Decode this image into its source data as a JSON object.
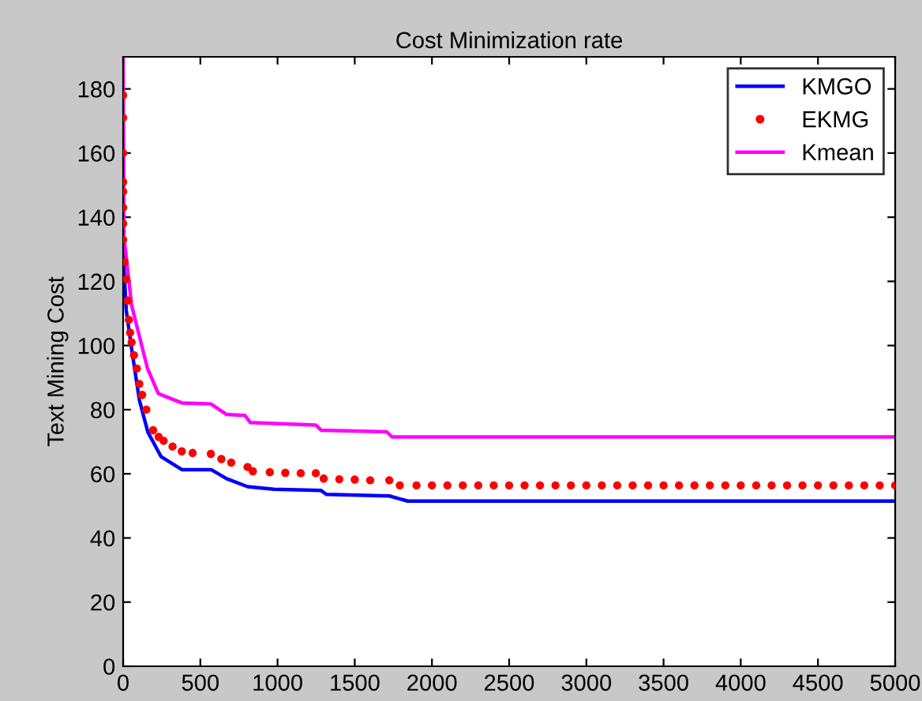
{
  "chart_data": {
    "type": "line",
    "title": "Cost Minimization rate",
    "ylabel": "Text Mining Cost",
    "xlim": [
      0,
      5000
    ],
    "ylim": [
      0,
      190
    ],
    "xticks": [
      0,
      500,
      1000,
      1500,
      2000,
      2500,
      3000,
      3500,
      4000,
      4500,
      5000
    ],
    "yticks": [
      0,
      20,
      40,
      60,
      80,
      100,
      120,
      140,
      160,
      180
    ],
    "grid": false,
    "legend": "top right",
    "series": [
      {
        "name": "KMGO",
        "color": "#0000ff",
        "x": [
          0,
          20,
          55,
          105,
          160,
          245,
          380,
          570,
          670,
          806,
          976,
          1282,
          1316,
          1724,
          1843,
          5000
        ],
        "values": [
          129,
          111,
          99,
          83,
          73,
          65.4,
          61.3,
          61.3,
          58.5,
          56,
          55.2,
          54.8,
          53.6,
          53.1,
          51.5,
          51.5
        ]
      },
      {
        "name": "EKMG",
        "color": "#ff0000",
        "type": "scatter",
        "marker": "circle",
        "x": [
          0,
          0,
          0,
          0,
          0,
          0,
          0,
          0,
          10,
          20,
          30,
          37,
          45,
          55,
          70,
          89,
          105,
          123,
          150,
          194,
          230,
          262,
          320,
          380,
          450,
          568,
          636,
          700,
          806,
          840,
          950,
          1050,
          1150,
          1248,
          1299,
          1400,
          1500,
          1600,
          1724,
          1792,
          1900,
          2000,
          2100,
          2200,
          2300,
          2400,
          2500,
          2600,
          2700,
          2800,
          2900,
          3000,
          3100,
          3200,
          3300,
          3400,
          3500,
          3600,
          3700,
          3800,
          3900,
          4000,
          4100,
          4200,
          4300,
          4400,
          4500,
          4600,
          4700,
          4800,
          4900,
          5000
        ],
        "values": [
          178,
          171,
          160,
          151,
          148,
          143,
          138,
          133,
          126,
          120.7,
          114,
          108,
          104,
          101,
          97,
          92.8,
          88,
          84.6,
          80,
          73.6,
          71.5,
          70.3,
          68.5,
          67,
          66.5,
          66.2,
          64.6,
          63.5,
          62.1,
          60.8,
          60.5,
          60.3,
          60.2,
          60.2,
          58.5,
          58.3,
          58.2,
          58,
          58,
          56.4,
          56.4,
          56.4,
          56.4,
          56.4,
          56.4,
          56.4,
          56.4,
          56.4,
          56.4,
          56.4,
          56.4,
          56.4,
          56.4,
          56.4,
          56.4,
          56.4,
          56.4,
          56.4,
          56.4,
          56.4,
          56.4,
          56.4,
          56.4,
          56.4,
          56.4,
          56.4,
          56.4,
          56.4,
          56.4,
          56.4,
          56.4,
          56.4
        ]
      },
      {
        "name": "Kmean",
        "color": "#ff00ff",
        "x": [
          0,
          5,
          55,
          89,
          158,
          228,
          380,
          568,
          670,
          789,
          823,
          1248,
          1282,
          1707,
          1741,
          5000
        ],
        "values": [
          190,
          134,
          112.5,
          106,
          92.8,
          85,
          82.1,
          81.8,
          78.5,
          78.2,
          76,
          75.2,
          73.6,
          73.1,
          71.5,
          71.5
        ]
      }
    ]
  }
}
